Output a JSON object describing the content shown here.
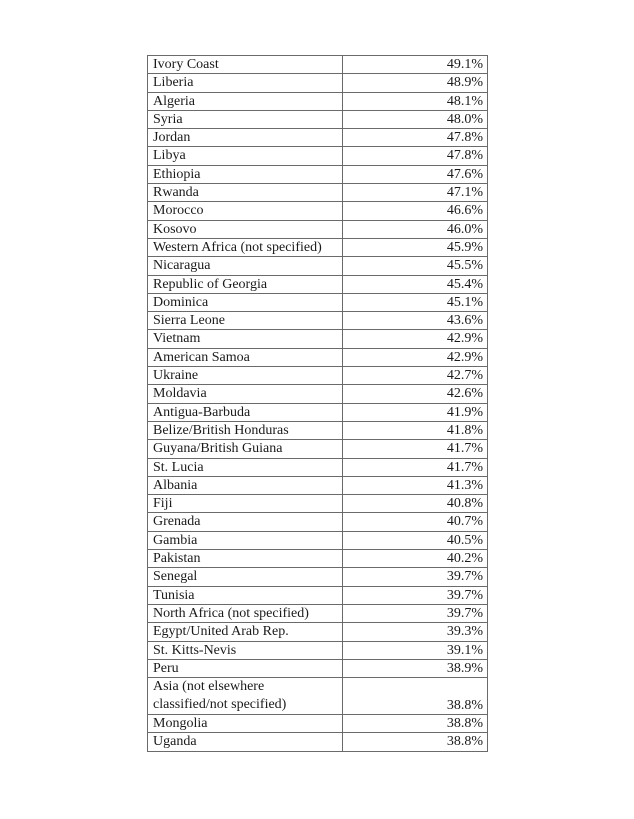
{
  "table": {
    "rows": [
      {
        "country": "Ivory Coast",
        "value": "49.1%"
      },
      {
        "country": "Liberia",
        "value": "48.9%"
      },
      {
        "country": "Algeria",
        "value": "48.1%"
      },
      {
        "country": "Syria",
        "value": "48.0%"
      },
      {
        "country": "Jordan",
        "value": "47.8%"
      },
      {
        "country": "Libya",
        "value": "47.8%"
      },
      {
        "country": "Ethiopia",
        "value": "47.6%"
      },
      {
        "country": "Rwanda",
        "value": "47.1%"
      },
      {
        "country": "Morocco",
        "value": "46.6%"
      },
      {
        "country": "Kosovo",
        "value": "46.0%"
      },
      {
        "country": "Western Africa (not specified)",
        "value": "45.9%"
      },
      {
        "country": "Nicaragua",
        "value": "45.5%"
      },
      {
        "country": "Republic of Georgia",
        "value": "45.4%"
      },
      {
        "country": "Dominica",
        "value": "45.1%"
      },
      {
        "country": "Sierra Leone",
        "value": "43.6%"
      },
      {
        "country": "Vietnam",
        "value": "42.9%"
      },
      {
        "country": "American Samoa",
        "value": "42.9%"
      },
      {
        "country": "Ukraine",
        "value": "42.7%"
      },
      {
        "country": "Moldavia",
        "value": "42.6%"
      },
      {
        "country": "Antigua-Barbuda",
        "value": "41.9%"
      },
      {
        "country": "Belize/British Honduras",
        "value": "41.8%"
      },
      {
        "country": "Guyana/British Guiana",
        "value": "41.7%"
      },
      {
        "country": "St. Lucia",
        "value": "41.7%"
      },
      {
        "country": "Albania",
        "value": "41.3%"
      },
      {
        "country": "Fiji",
        "value": "40.8%"
      },
      {
        "country": "Grenada",
        "value": "40.7%"
      },
      {
        "country": "Gambia",
        "value": "40.5%"
      },
      {
        "country": "Pakistan",
        "value": "40.2%"
      },
      {
        "country": "Senegal",
        "value": "39.7%"
      },
      {
        "country": "Tunisia",
        "value": "39.7%"
      },
      {
        "country": "North Africa (not specified)",
        "value": "39.7%"
      },
      {
        "country": "Egypt/United Arab Rep.",
        "value": "39.3%"
      },
      {
        "country": "St. Kitts-Nevis",
        "value": "39.1%"
      },
      {
        "country": "Peru",
        "value": "38.9%"
      },
      {
        "country": "Asia (not elsewhere classified/not specified)",
        "value": "38.8%"
      },
      {
        "country": "Mongolia",
        "value": "38.8%"
      },
      {
        "country": "Uganda",
        "value": "38.8%"
      }
    ]
  }
}
